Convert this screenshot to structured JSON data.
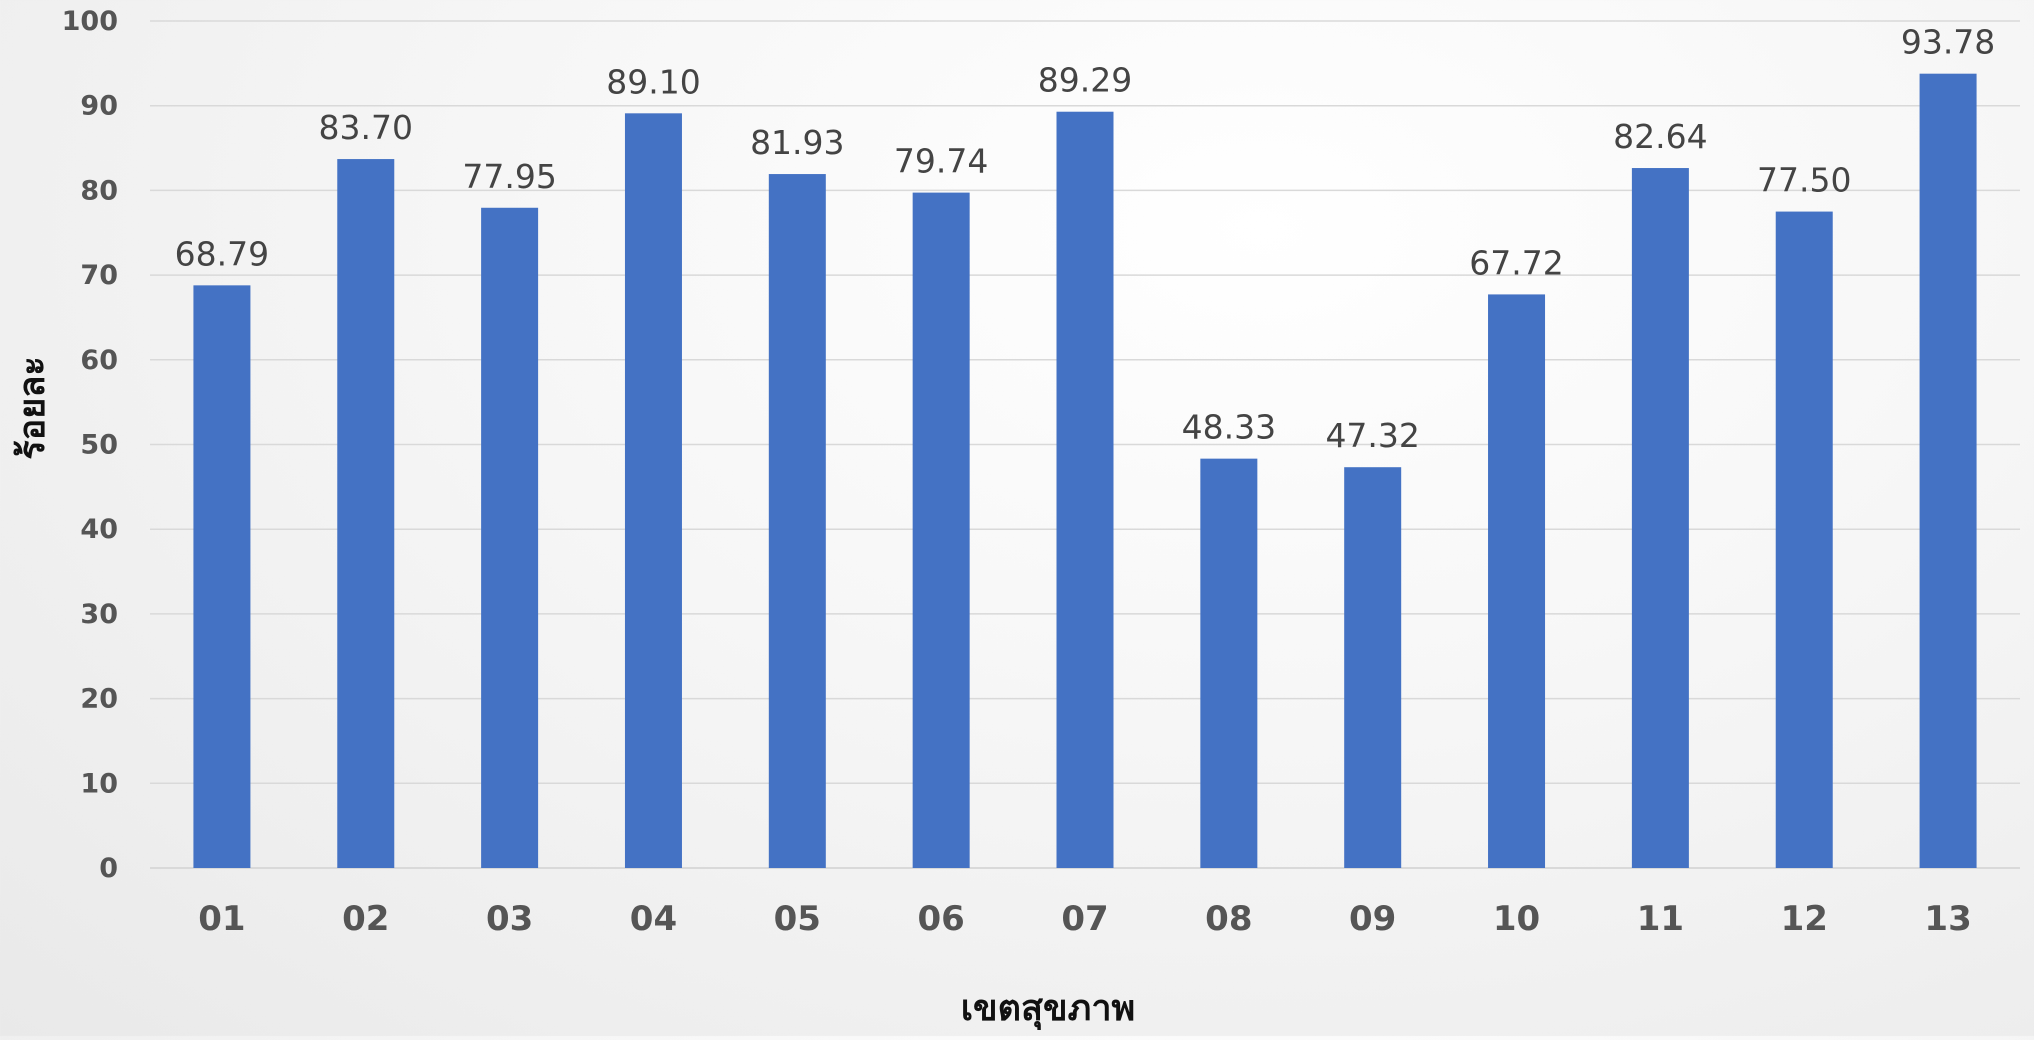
{
  "chart_data": {
    "type": "bar",
    "title": "",
    "xlabel": "เขตสุขภาพ",
    "ylabel": "ร้อยละ",
    "categories": [
      "01",
      "02",
      "03",
      "04",
      "05",
      "06",
      "07",
      "08",
      "09",
      "10",
      "11",
      "12",
      "13"
    ],
    "values": [
      68.79,
      83.7,
      77.95,
      89.1,
      81.93,
      79.74,
      89.29,
      48.33,
      47.32,
      67.72,
      82.64,
      77.5,
      93.78
    ],
    "data_labels": [
      "68.79",
      "83.70",
      "77.95",
      "89.10",
      "81.93",
      "79.74",
      "89.29",
      "48.33",
      "47.32",
      "67.72",
      "82.64",
      "77.50",
      "93.78"
    ],
    "ylim": [
      0,
      100
    ],
    "y_ticks": [
      "0",
      "10",
      "20",
      "30",
      "40",
      "50",
      "60",
      "70",
      "80",
      "90",
      "100"
    ],
    "grid": true,
    "legend": "none",
    "bar_color": "#4472C4",
    "grid_color": "#d9d9d9"
  }
}
